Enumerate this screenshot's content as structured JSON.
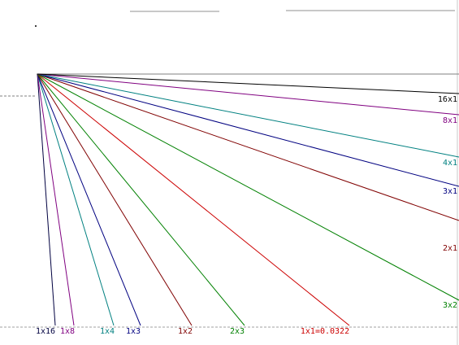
{
  "gann_fan": {
    "rays": [
      {
        "id": "1x16",
        "label": "1x16",
        "color": "#000040"
      },
      {
        "id": "1x8",
        "label": "1x8",
        "color": "#800080"
      },
      {
        "id": "1x4",
        "label": "1x4",
        "color": "#008080"
      },
      {
        "id": "1x3",
        "label": "1x3",
        "color": "#000080"
      },
      {
        "id": "1x2",
        "label": "1x2",
        "color": "#800000"
      },
      {
        "id": "2x3",
        "label": "2x3",
        "color": "#008000"
      },
      {
        "id": "1x1",
        "label": "1x1=0.0322",
        "color": "#cc0000"
      },
      {
        "id": "3x2",
        "label": "3x2",
        "color": "#008000"
      },
      {
        "id": "2x1",
        "label": "2x1",
        "color": "#800000"
      },
      {
        "id": "3x1",
        "label": "3x1",
        "color": "#000080"
      },
      {
        "id": "4x1",
        "label": "4x1",
        "color": "#008080"
      },
      {
        "id": "8x1",
        "label": "8x1",
        "color": "#800080"
      },
      {
        "id": "16x1",
        "label": "16x1",
        "color": "#000000"
      }
    ],
    "colors": {
      "background": "#ffffff",
      "horizontal_line": "#808080",
      "dashed_line": "#a0a0a0",
      "top_lines": "#c8c8c8"
    }
  }
}
